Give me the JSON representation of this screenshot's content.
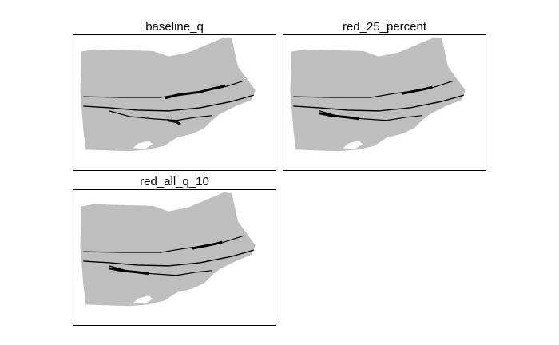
{
  "figure": {
    "panels": [
      {
        "title": "baseline_q"
      },
      {
        "title": "red_25_percent"
      },
      {
        "title": "red_all_q_10"
      }
    ]
  },
  "colors": {
    "land": "#bebebe",
    "water": "#000000",
    "hole": "#ffffff",
    "frame": "#000000",
    "background": "#ffffff"
  }
}
